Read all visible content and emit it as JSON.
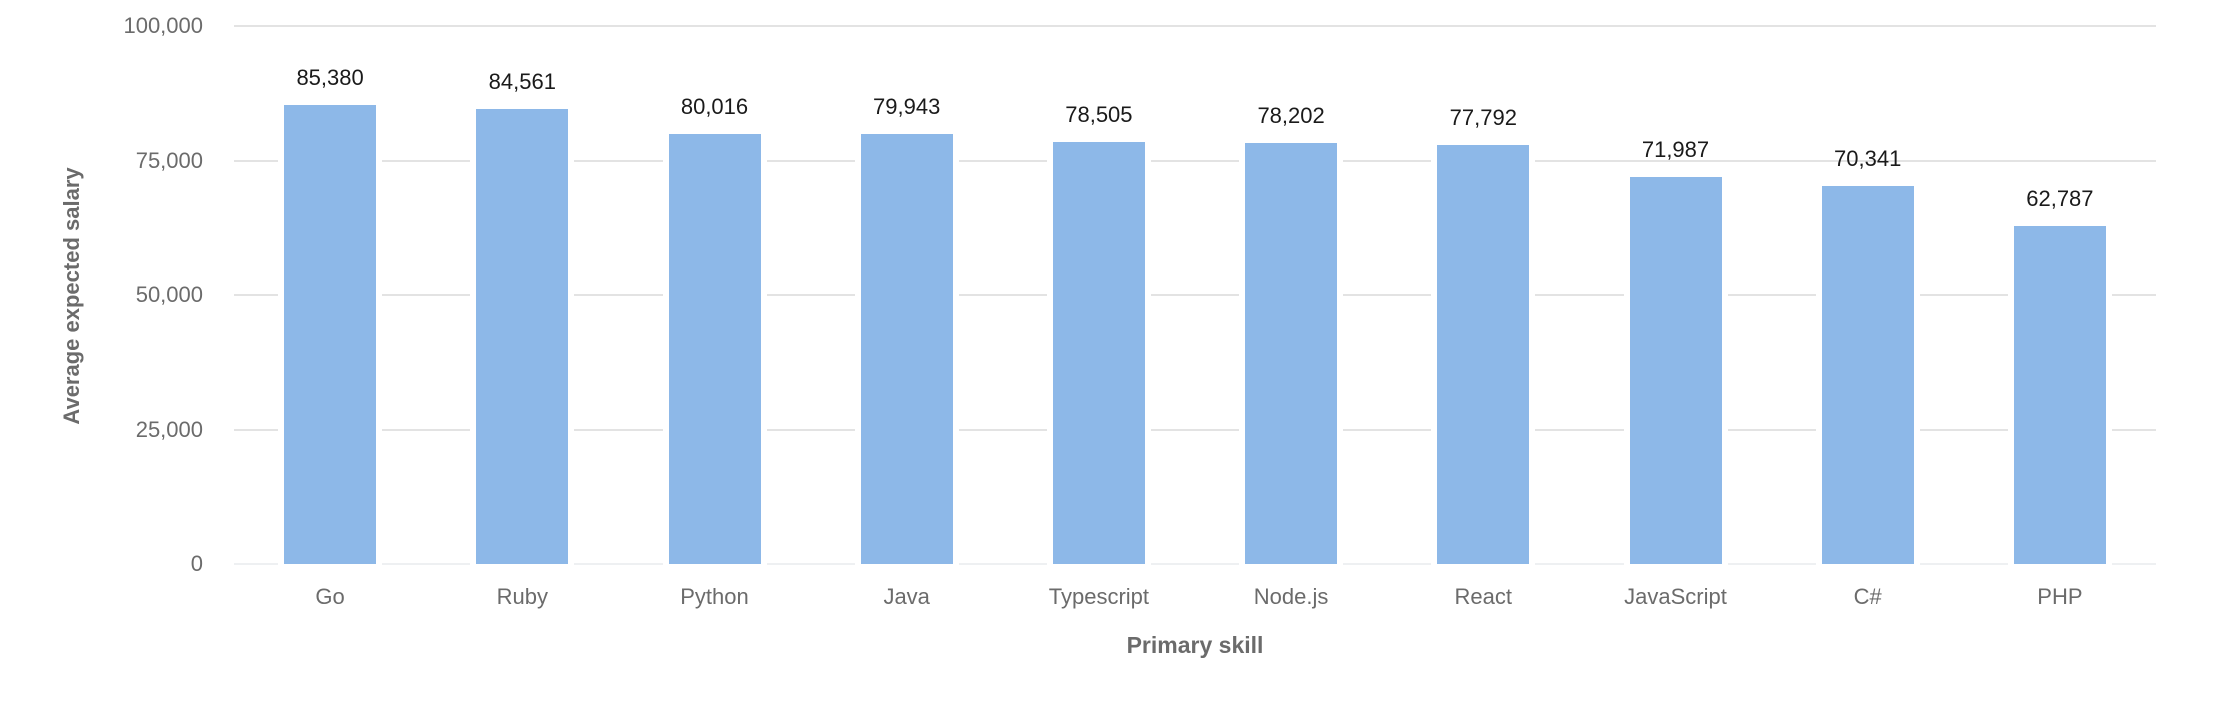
{
  "chart_data": {
    "type": "bar",
    "title": "",
    "xlabel": "Primary skill",
    "ylabel": "Average expected salary",
    "ylim": [
      0,
      100000
    ],
    "yticks": [
      0,
      25000,
      50000,
      75000,
      100000
    ],
    "ytick_labels": [
      "0",
      "25,000",
      "50,000",
      "75,000",
      "100,000"
    ],
    "grid": "horizontal",
    "legend": null,
    "bar_color": "#8db8e8",
    "categories": [
      "Go",
      "Ruby",
      "Python",
      "Java",
      "Typescript",
      "Node.js",
      "React",
      "JavaScript",
      "C#",
      "PHP"
    ],
    "values": [
      85380,
      84561,
      80016,
      79943,
      78505,
      78202,
      77792,
      71987,
      70341,
      62787
    ],
    "value_labels": [
      "85,380",
      "84,561",
      "80,016",
      "79,943",
      "78,505",
      "78,202",
      "77,792",
      "71,987",
      "70,341",
      "62,787"
    ]
  }
}
